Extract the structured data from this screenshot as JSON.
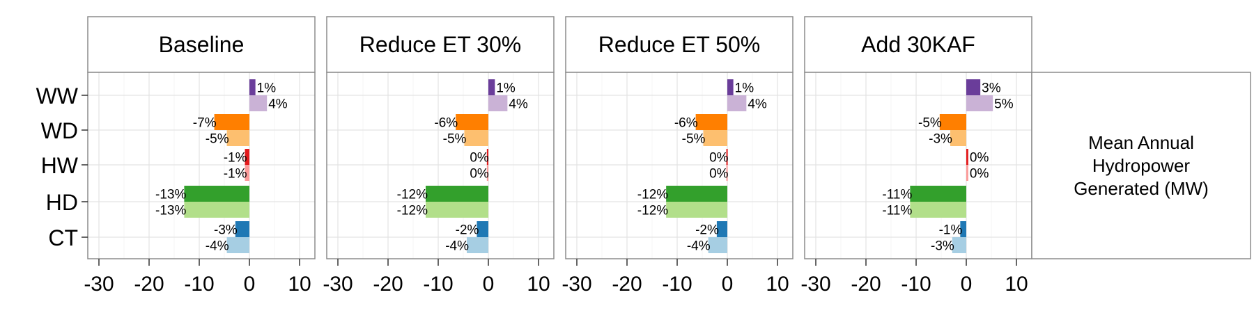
{
  "chart_data": {
    "type": "bar",
    "orientation": "horizontal",
    "panels": [
      "Baseline",
      "Reduce ET 30%",
      "Reduce ET 50%",
      "Add 30KAF"
    ],
    "categories": [
      "WW",
      "WD",
      "HW",
      "HD",
      "CT"
    ],
    "side_label": [
      "Mean Annual",
      "Hydropower",
      "Generated (MW)"
    ],
    "xlim": [
      -32,
      12
    ],
    "xticks": [
      -30,
      -20,
      -10,
      0,
      10
    ],
    "grid": true,
    "colors": {
      "WW": [
        "#6a3d9a",
        "#cab2d6"
      ],
      "WD": [
        "#ff7f00",
        "#fdbf6f"
      ],
      "HW": [
        "#e31a1c",
        "#fb9a99"
      ],
      "HD": [
        "#33a02c",
        "#b2df8a"
      ],
      "CT": [
        "#1f78b4",
        "#a6cee3"
      ]
    },
    "data": [
      {
        "panel": "Baseline",
        "values": {
          "WW": [
            1.2,
            3.5
          ],
          "WD": [
            -7.0,
            -4.5
          ],
          "HW": [
            -0.9,
            -0.9
          ],
          "HD": [
            -13.0,
            -13.0
          ],
          "CT": [
            -2.8,
            -4.5
          ]
        },
        "labels": {
          "WW": [
            "1%",
            "4%"
          ],
          "WD": [
            "-7%",
            "-5%"
          ],
          "HW": [
            "-1%",
            "-1%"
          ],
          "HD": [
            "-13%",
            "-13%"
          ],
          "CT": [
            "-3%",
            "-4%"
          ]
        }
      },
      {
        "panel": "Reduce ET 30%",
        "values": {
          "WW": [
            1.3,
            3.8
          ],
          "WD": [
            -6.5,
            -4.8
          ],
          "HW": [
            -0.3,
            -0.3
          ],
          "HD": [
            -12.5,
            -12.5
          ],
          "CT": [
            -2.3,
            -4.3
          ]
        },
        "labels": {
          "WW": [
            "1%",
            "4%"
          ],
          "WD": [
            "-6%",
            "-5%"
          ],
          "HW": [
            "0%",
            "0%"
          ],
          "HD": [
            "-12%",
            "-12%"
          ],
          "CT": [
            "-2%",
            "-4%"
          ]
        }
      },
      {
        "panel": "Reduce ET 50%",
        "values": {
          "WW": [
            1.2,
            3.8
          ],
          "WD": [
            -6.3,
            -4.8
          ],
          "HW": [
            -0.2,
            -0.2
          ],
          "HD": [
            -12.2,
            -12.2
          ],
          "CT": [
            -2.1,
            -3.8
          ]
        },
        "labels": {
          "WW": [
            "1%",
            "4%"
          ],
          "WD": [
            "-6%",
            "-5%"
          ],
          "HW": [
            "0%",
            "0%"
          ],
          "HD": [
            "-12%",
            "-12%"
          ],
          "CT": [
            "-2%",
            "-4%"
          ]
        }
      },
      {
        "panel": "Add 30KAF",
        "values": {
          "WW": [
            2.8,
            5.3
          ],
          "WD": [
            -5.3,
            -3.2
          ],
          "HW": [
            0.4,
            0.4
          ],
          "HD": [
            -11.2,
            -11.2
          ],
          "CT": [
            -1.2,
            -2.8
          ]
        },
        "labels": {
          "WW": [
            "3%",
            "5%"
          ],
          "WD": [
            "-5%",
            "-3%"
          ],
          "HW": [
            "0%",
            "0%"
          ],
          "HD": [
            "-11%",
            "-11%"
          ],
          "CT": [
            "-1%",
            "-3%"
          ]
        }
      }
    ]
  }
}
